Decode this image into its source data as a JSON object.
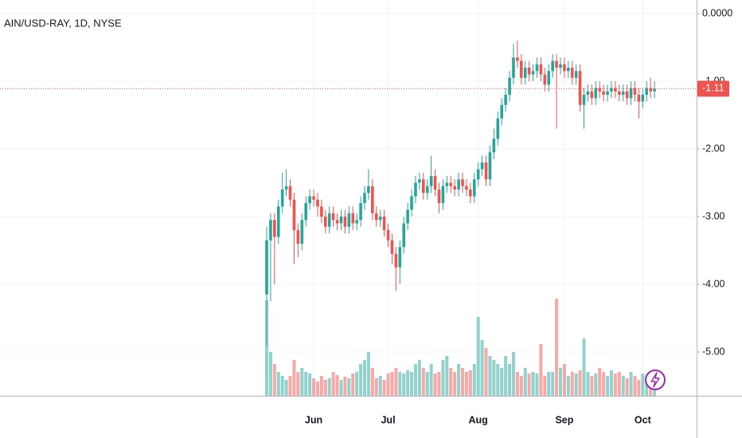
{
  "chart_data": {
    "type": "candlestick",
    "title": "AIN/USD-RAY, 1D, NYSE",
    "categories": [
      null,
      null,
      null,
      null,
      null,
      null,
      null,
      null,
      null,
      null,
      null,
      null,
      "Jun",
      null,
      null,
      null,
      null,
      null,
      null,
      null,
      null,
      null,
      null,
      null,
      null,
      null,
      null,
      null,
      null,
      null,
      null,
      "Jul",
      null,
      null,
      null,
      null,
      null,
      null,
      null,
      null,
      null,
      null,
      null,
      null,
      null,
      null,
      null,
      null,
      null,
      null,
      null,
      null,
      null,
      null,
      "Aug",
      null,
      null,
      null,
      null,
      null,
      null,
      null,
      null,
      null,
      null,
      null,
      null,
      null,
      null,
      null,
      null,
      null,
      null,
      null,
      null,
      null,
      "Sep",
      null,
      null,
      null,
      null,
      null,
      null,
      null,
      null,
      null,
      null,
      null,
      null,
      null,
      null,
      null,
      null,
      null,
      null,
      null,
      "Oct",
      null,
      null,
      null
    ],
    "open": [
      -4.15,
      -3.35,
      -3.05,
      -3.3,
      -2.85,
      -2.6,
      -2.55,
      -2.75,
      -3.2,
      -3.4,
      -3.05,
      -2.8,
      -2.7,
      -2.75,
      -2.85,
      -3.0,
      -3.15,
      -2.95,
      -3.05,
      -3.1,
      -3.0,
      -3.15,
      -2.95,
      -3.1,
      -3.05,
      -2.8,
      -2.65,
      -2.55,
      -2.95,
      -3.05,
      -3.0,
      -3.2,
      -3.35,
      -3.55,
      -3.75,
      -3.45,
      -3.1,
      -2.9,
      -2.7,
      -2.5,
      -2.45,
      -2.65,
      -2.55,
      -2.4,
      -2.6,
      -2.8,
      -2.55,
      -2.5,
      -2.55,
      -2.6,
      -2.45,
      -2.55,
      -2.6,
      -2.7,
      -2.45,
      -2.3,
      -2.2,
      -2.45,
      -2.05,
      -1.85,
      -1.55,
      -1.35,
      -1.2,
      -0.95,
      -0.65,
      -0.7,
      -0.95,
      -0.8,
      -0.9,
      -0.85,
      -0.75,
      -0.9,
      -1.05,
      -0.85,
      -0.7,
      -0.8,
      -0.75,
      -0.85,
      -0.8,
      -0.95,
      -0.85,
      -1.35,
      -1.2,
      -1.15,
      -1.25,
      -1.1,
      -1.15,
      -1.2,
      -1.15,
      -1.1,
      -1.15,
      -1.2,
      -1.15,
      -1.25,
      -1.1,
      -1.2,
      -1.3,
      -1.2,
      -1.1,
      -1.15
    ],
    "high": [
      -3.15,
      -2.95,
      -2.95,
      -2.75,
      -2.35,
      -2.3,
      -2.45,
      -2.65,
      -3.1,
      -2.95,
      -2.7,
      -2.6,
      -2.6,
      -2.65,
      -2.75,
      -2.9,
      -2.85,
      -2.85,
      -2.95,
      -2.9,
      -2.9,
      -2.85,
      -2.85,
      -2.95,
      -2.7,
      -2.55,
      -2.3,
      -2.45,
      -2.85,
      -2.9,
      -2.9,
      -3.1,
      -3.25,
      -3.45,
      -3.35,
      -3.0,
      -2.8,
      -2.6,
      -2.4,
      -2.35,
      -2.35,
      -2.45,
      -2.1,
      -2.3,
      -2.5,
      -2.45,
      -2.4,
      -2.4,
      -2.45,
      -2.35,
      -2.35,
      -2.45,
      -2.5,
      -2.35,
      -2.2,
      -2.1,
      -2.1,
      -1.95,
      -1.7,
      -1.45,
      -1.25,
      -1.1,
      -0.85,
      -0.45,
      -0.4,
      -0.6,
      -0.7,
      -0.7,
      -0.75,
      -0.65,
      -0.65,
      -0.8,
      -0.75,
      -0.6,
      -0.6,
      -0.65,
      -0.65,
      -0.7,
      -0.7,
      -0.75,
      -0.75,
      -1.1,
      -1.05,
      -1.05,
      -1.0,
      -1.0,
      -1.05,
      -1.05,
      -1.0,
      -1.0,
      -1.05,
      -1.05,
      -1.05,
      -1.0,
      -1.0,
      -1.1,
      -1.1,
      -1.0,
      -0.95,
      -1.0
    ],
    "low": [
      -4.9,
      -4.25,
      -4.0,
      -3.4,
      -2.95,
      -2.7,
      -2.85,
      -3.7,
      -3.6,
      -3.5,
      -3.15,
      -2.9,
      -2.85,
      -3.0,
      -3.1,
      -3.25,
      -3.25,
      -3.15,
      -3.2,
      -3.2,
      -3.25,
      -3.25,
      -3.2,
      -3.2,
      -3.15,
      -2.9,
      -2.75,
      -3.05,
      -3.15,
      -3.15,
      -3.3,
      -3.45,
      -3.7,
      -4.1,
      -4.0,
      -3.55,
      -3.2,
      -3.0,
      -2.8,
      -2.6,
      -2.75,
      -2.75,
      -2.65,
      -2.7,
      -2.95,
      -2.9,
      -2.65,
      -2.65,
      -2.7,
      -2.7,
      -2.65,
      -2.7,
      -2.8,
      -2.8,
      -2.55,
      -2.4,
      -2.55,
      -2.55,
      -2.15,
      -1.95,
      -1.65,
      -1.45,
      -1.3,
      -1.05,
      -0.8,
      -1.05,
      -1.05,
      -1.0,
      -1.0,
      -0.95,
      -1.0,
      -1.15,
      -1.15,
      -0.95,
      -1.7,
      -0.9,
      -0.95,
      -0.95,
      -1.05,
      -1.05,
      -1.45,
      -1.7,
      -1.3,
      -1.35,
      -1.35,
      -1.25,
      -1.3,
      -1.3,
      -1.25,
      -1.25,
      -1.3,
      -1.3,
      -1.35,
      -1.35,
      -1.3,
      -1.55,
      -1.4,
      -1.3,
      -1.25,
      -1.25
    ],
    "close": [
      -3.35,
      -3.05,
      -3.3,
      -2.85,
      -2.6,
      -2.55,
      -2.75,
      -3.2,
      -3.4,
      -3.05,
      -2.8,
      -2.7,
      -2.75,
      -2.85,
      -3.0,
      -3.15,
      -2.95,
      -3.05,
      -3.1,
      -3.0,
      -3.15,
      -2.95,
      -3.1,
      -3.05,
      -2.8,
      -2.65,
      -2.55,
      -2.95,
      -3.05,
      -3.0,
      -3.2,
      -3.35,
      -3.55,
      -3.75,
      -3.45,
      -3.1,
      -2.9,
      -2.7,
      -2.5,
      -2.45,
      -2.65,
      -2.55,
      -2.4,
      -2.6,
      -2.8,
      -2.55,
      -2.5,
      -2.55,
      -2.6,
      -2.45,
      -2.55,
      -2.6,
      -2.7,
      -2.45,
      -2.3,
      -2.2,
      -2.45,
      -2.05,
      -1.85,
      -1.55,
      -1.35,
      -1.2,
      -0.95,
      -0.65,
      -0.7,
      -0.95,
      -0.8,
      -0.9,
      -0.85,
      -0.75,
      -0.9,
      -1.05,
      -0.85,
      -0.7,
      -0.8,
      -0.75,
      -0.85,
      -0.8,
      -0.95,
      -0.85,
      -1.35,
      -1.2,
      -1.15,
      -1.25,
      -1.1,
      -1.15,
      -1.2,
      -1.15,
      -1.1,
      -1.15,
      -1.2,
      -1.15,
      -1.25,
      -1.1,
      -1.2,
      -1.3,
      -1.2,
      -1.1,
      -1.15,
      -1.11
    ],
    "volume": [
      120,
      55,
      40,
      30,
      25,
      20,
      25,
      45,
      30,
      35,
      30,
      28,
      22,
      18,
      25,
      20,
      22,
      30,
      26,
      20,
      24,
      22,
      28,
      30,
      40,
      45,
      55,
      35,
      22,
      25,
      20,
      28,
      30,
      35,
      30,
      28,
      32,
      30,
      40,
      45,
      35,
      30,
      40,
      28,
      30,
      45,
      50,
      35,
      30,
      40,
      35,
      30,
      32,
      40,
      99,
      70,
      60,
      50,
      45,
      40,
      35,
      50,
      40,
      55,
      30,
      25,
      35,
      28,
      30,
      28,
      65,
      25,
      30,
      30,
      122,
      35,
      40,
      25,
      30,
      28,
      32,
      72,
      30,
      25,
      28,
      35,
      30,
      25,
      32,
      28,
      30,
      25,
      22,
      30,
      25,
      20,
      28,
      22,
      25,
      30
    ],
    "up_color": "#26a69a",
    "down_color": "#ef5350",
    "ylim": [
      -5.647,
      0.2
    ],
    "yticks": [
      {
        "value": 0,
        "label": "0.0000"
      },
      {
        "value": -1,
        "label": "-1.00"
      },
      {
        "value": -2,
        "label": "-2.00"
      },
      {
        "value": -3,
        "label": "-3.00"
      },
      {
        "value": -4,
        "label": "-4.00"
      },
      {
        "value": -5,
        "label": "-5.00"
      }
    ],
    "last_price": -1.11,
    "grid": true
  }
}
